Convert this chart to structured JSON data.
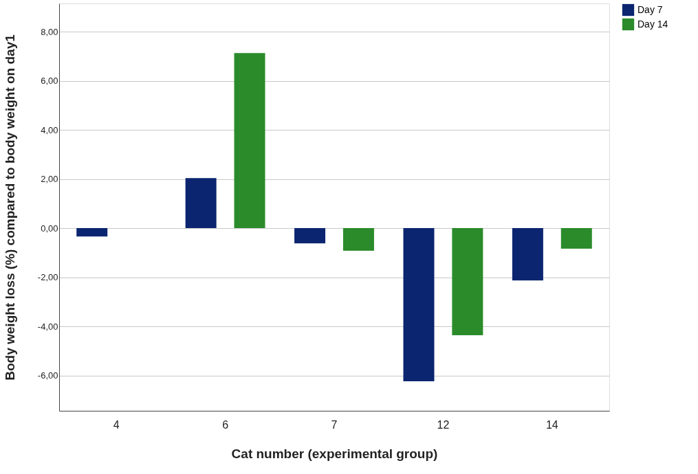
{
  "chart_data": {
    "type": "bar",
    "xlabel": "Cat number (experimental group)",
    "ylabel": "Body weight loss (%) compared to body weight on day1",
    "categories": [
      "4",
      "6",
      "7",
      "12",
      "14"
    ],
    "series": [
      {
        "name": "Day 7",
        "color": "#0b2570",
        "values": [
          -0.34,
          2.04,
          -0.62,
          -6.24,
          -2.13
        ]
      },
      {
        "name": "Day 14",
        "color": "#2b8b2b",
        "values": [
          0,
          7.13,
          -0.92,
          -4.36,
          -0.84
        ]
      }
    ],
    "ylim": [
      -7.44,
      9.15
    ],
    "yticks": [
      {
        "value": -6,
        "label": "-6,00"
      },
      {
        "value": -4,
        "label": "-4,00"
      },
      {
        "value": -2,
        "label": "-2,00"
      },
      {
        "value": 0,
        "label": "0,00"
      },
      {
        "value": 2,
        "label": "2,00"
      },
      {
        "value": 4,
        "label": "4,00"
      },
      {
        "value": 6,
        "label": "6,00"
      },
      {
        "value": 8,
        "label": "8,00"
      }
    ],
    "grid": "y",
    "legend": "top right"
  }
}
